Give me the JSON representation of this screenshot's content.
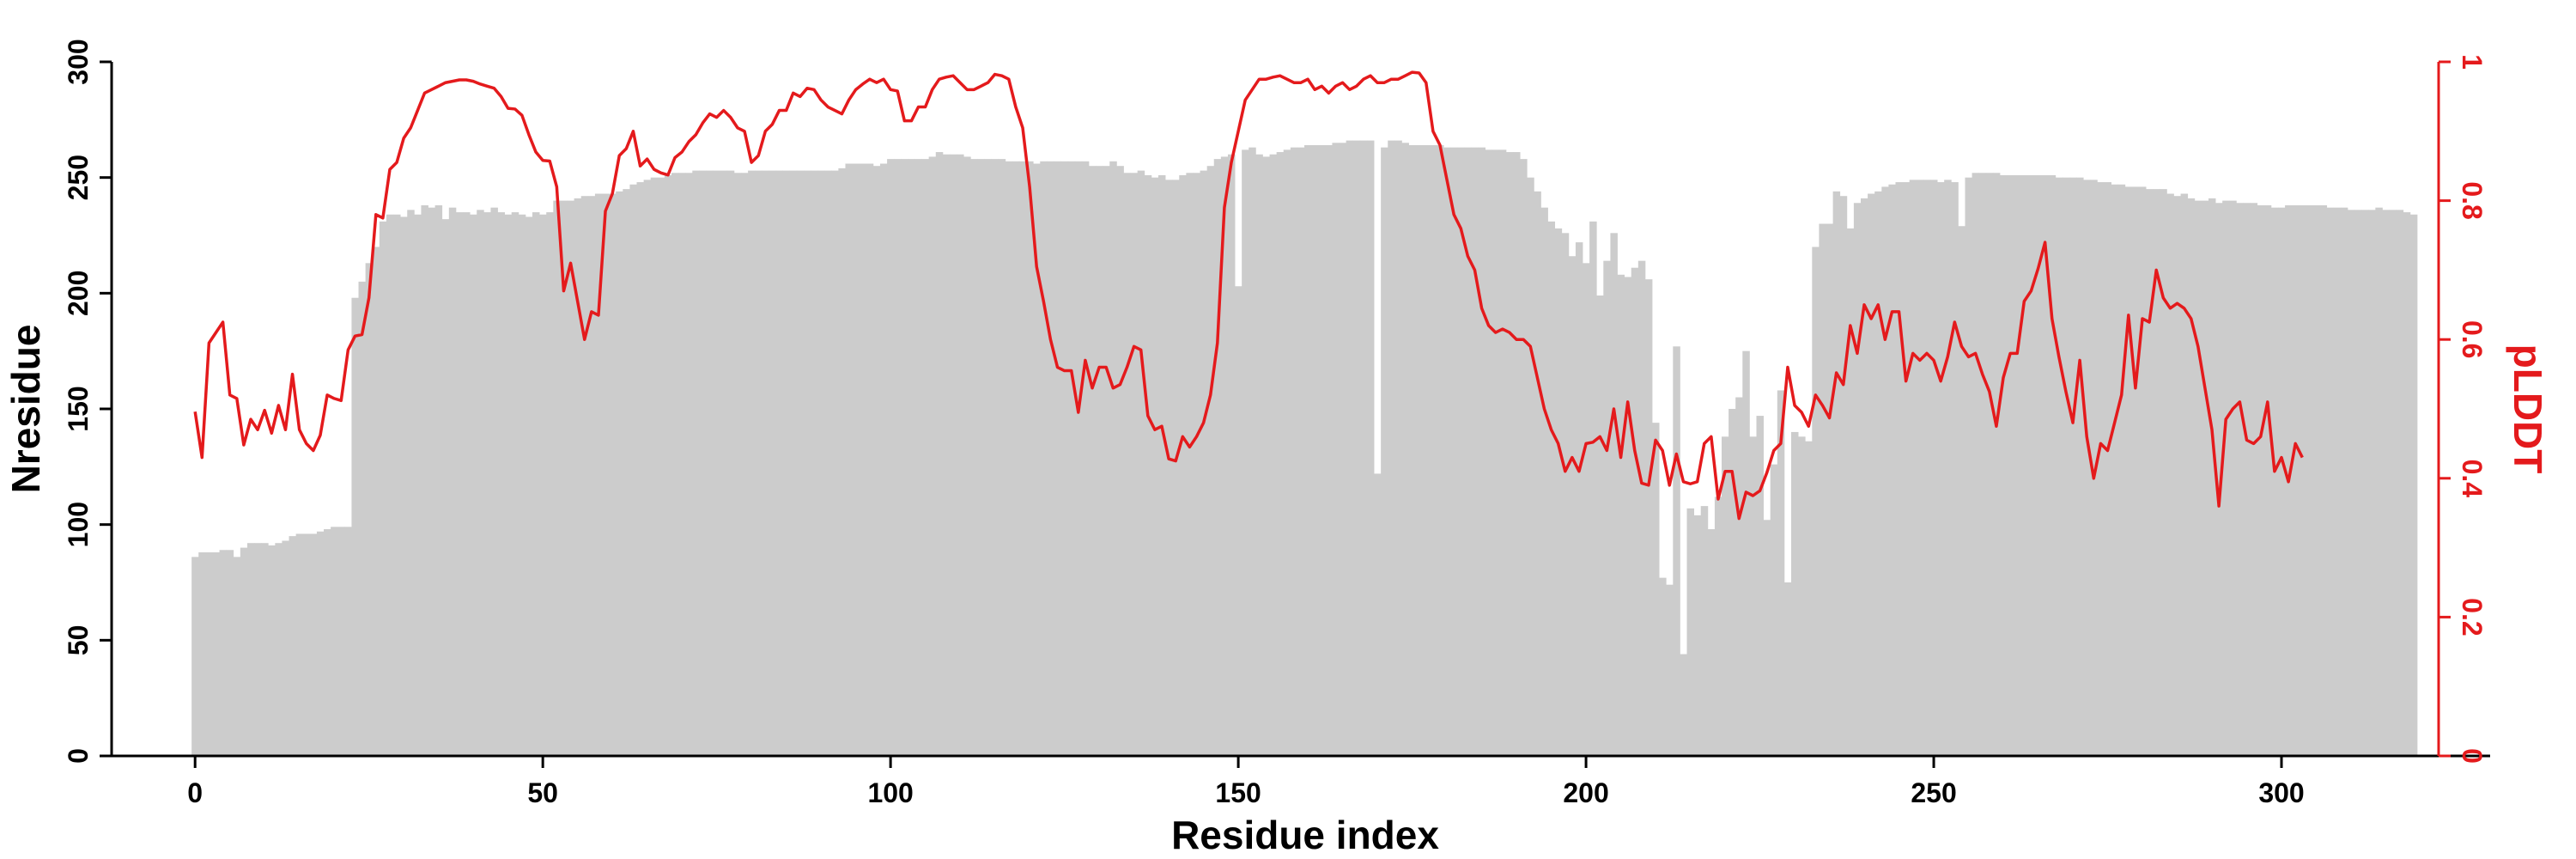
{
  "chart_data": {
    "type": "bar",
    "xlabel": "Residue index",
    "ylabel": "Nresidue",
    "y2label": "pLDDT",
    "xlim": [
      -12,
      330
    ],
    "ylim": [
      0,
      300
    ],
    "y2lim": [
      0,
      1
    ],
    "x_ticks": [
      0,
      50,
      100,
      150,
      200,
      250,
      300
    ],
    "y_ticks": [
      0,
      50,
      100,
      150,
      200,
      250,
      300
    ],
    "y2_ticks": [
      0,
      0.2,
      0.4,
      0.6,
      0.8,
      1
    ],
    "grid": false,
    "series": [
      {
        "axis": "left",
        "type": "bar",
        "color": "#cccccc",
        "x_start": 0,
        "values": [
          86,
          88,
          88,
          88,
          89,
          89,
          86,
          90,
          92,
          92,
          92,
          91,
          92,
          93,
          95,
          96,
          96,
          96,
          97,
          98,
          99,
          99,
          99,
          198,
          205,
          213,
          220,
          231,
          234,
          234,
          233,
          236,
          234,
          238,
          237,
          238,
          232,
          237,
          235,
          235,
          234,
          236,
          235,
          237,
          235,
          234,
          235,
          234,
          233,
          235,
          234,
          235,
          240,
          240,
          240,
          241,
          242,
          242,
          243,
          243,
          243,
          244,
          245,
          247,
          248,
          249,
          250,
          250,
          251,
          252,
          252,
          252,
          253,
          253,
          253,
          253,
          253,
          253,
          252,
          252,
          253,
          253,
          253,
          253,
          253,
          253,
          253,
          253,
          253,
          253,
          253,
          253,
          253,
          254,
          256,
          256,
          256,
          256,
          255,
          256,
          258,
          258,
          258,
          258,
          258,
          258,
          259,
          261,
          260,
          260,
          260,
          259,
          258,
          258,
          258,
          258,
          258,
          257,
          257,
          257,
          257,
          256,
          257,
          257,
          257,
          257,
          257,
          257,
          257,
          255,
          255,
          255,
          257,
          255,
          252,
          252,
          253,
          251,
          250,
          251,
          249,
          249,
          251,
          252,
          252,
          253,
          255,
          258,
          259,
          260,
          203,
          262,
          263,
          260,
          259,
          260,
          261,
          262,
          263,
          263,
          264,
          264,
          264,
          264,
          265,
          265,
          266,
          266,
          266,
          266,
          122,
          263,
          266,
          266,
          265,
          264,
          264,
          264,
          264,
          264,
          263,
          263,
          263,
          263,
          263,
          263,
          262,
          262,
          262,
          261,
          261,
          258,
          250,
          244,
          237,
          231,
          228,
          226,
          216,
          222,
          213,
          231,
          199,
          214,
          226,
          208,
          207,
          211,
          214,
          206,
          144,
          77,
          74,
          177,
          44,
          107,
          104,
          108,
          98,
          112,
          138,
          150,
          155,
          175,
          138,
          147,
          102,
          126,
          158,
          75,
          140,
          138,
          136,
          220,
          230,
          230,
          244,
          242,
          228,
          239,
          241,
          243,
          244,
          246,
          247,
          248,
          248,
          249,
          249,
          249,
          249,
          248,
          249,
          248,
          229,
          250,
          252,
          252,
          252,
          252,
          251,
          251,
          251,
          251,
          251,
          251,
          251,
          251,
          250,
          250,
          250,
          250,
          249,
          249,
          248,
          248,
          247,
          247,
          246,
          246,
          246,
          245,
          245,
          245,
          243,
          242,
          243,
          241,
          240,
          240,
          241,
          239,
          240,
          240,
          239,
          239,
          239,
          238,
          238,
          237,
          237,
          238,
          238,
          238,
          238,
          238,
          238,
          237,
          237,
          237,
          236,
          236,
          236,
          236,
          237,
          236,
          236,
          236,
          235,
          234
        ]
      },
      {
        "axis": "right",
        "type": "line",
        "color": "#e41a1c",
        "x_start": 0,
        "values": [
          0.496,
          0.43,
          0.595,
          0.61,
          0.625,
          0.52,
          0.515,
          0.448,
          0.485,
          0.47,
          0.498,
          0.465,
          0.505,
          0.47,
          0.55,
          0.47,
          0.45,
          0.44,
          0.462,
          0.52,
          0.515,
          0.512,
          0.585,
          0.605,
          0.607,
          0.66,
          0.78,
          0.775,
          0.845,
          0.855,
          0.89,
          0.905,
          0.93,
          0.955,
          0.96,
          0.965,
          0.97,
          0.972,
          0.974,
          0.974,
          0.972,
          0.968,
          0.965,
          0.962,
          0.95,
          0.933,
          0.932,
          0.923,
          0.895,
          0.87,
          0.858,
          0.857,
          0.82,
          0.67,
          0.71,
          0.655,
          0.6,
          0.64,
          0.635,
          0.785,
          0.81,
          0.865,
          0.875,
          0.9,
          0.85,
          0.86,
          0.845,
          0.84,
          0.837,
          0.862,
          0.87,
          0.885,
          0.895,
          0.912,
          0.925,
          0.92,
          0.93,
          0.92,
          0.905,
          0.9,
          0.855,
          0.865,
          0.9,
          0.91,
          0.93,
          0.93,
          0.955,
          0.95,
          0.962,
          0.96,
          0.945,
          0.935,
          0.93,
          0.925,
          0.945,
          0.96,
          0.968,
          0.975,
          0.97,
          0.975,
          0.96,
          0.958,
          0.915,
          0.915,
          0.935,
          0.935,
          0.96,
          0.975,
          0.978,
          0.98,
          0.97,
          0.96,
          0.96,
          0.965,
          0.97,
          0.982,
          0.98,
          0.975,
          0.935,
          0.905,
          0.82,
          0.705,
          0.655,
          0.6,
          0.56,
          0.555,
          0.555,
          0.495,
          0.57,
          0.53,
          0.56,
          0.56,
          0.53,
          0.535,
          0.56,
          0.59,
          0.585,
          0.49,
          0.47,
          0.475,
          0.428,
          0.425,
          0.46,
          0.445,
          0.46,
          0.48,
          0.52,
          0.595,
          0.79,
          0.855,
          0.9,
          0.945,
          0.96,
          0.975,
          0.975,
          0.978,
          0.98,
          0.975,
          0.97,
          0.97,
          0.975,
          0.96,
          0.965,
          0.955,
          0.965,
          0.97,
          0.96,
          0.965,
          0.975,
          0.98,
          0.97,
          0.97,
          0.975,
          0.975,
          0.98,
          0.985,
          0.984,
          0.97,
          0.9,
          0.88,
          0.83,
          0.78,
          0.76,
          0.72,
          0.7,
          0.645,
          0.62,
          0.61,
          0.615,
          0.61,
          0.6,
          0.6,
          0.59,
          0.545,
          0.5,
          0.47,
          0.45,
          0.41,
          0.43,
          0.41,
          0.45,
          0.452,
          0.46,
          0.44,
          0.5,
          0.43,
          0.51,
          0.44,
          0.393,
          0.39,
          0.455,
          0.44,
          0.39,
          0.435,
          0.395,
          0.392,
          0.395,
          0.45,
          0.46,
          0.37,
          0.41,
          0.41,
          0.342,
          0.38,
          0.375,
          0.382,
          0.408,
          0.44,
          0.45,
          0.56,
          0.505,
          0.495,
          0.475,
          0.52,
          0.505,
          0.487,
          0.552,
          0.535,
          0.62,
          0.58,
          0.65,
          0.63,
          0.65,
          0.6,
          0.64,
          0.64,
          0.54,
          0.58,
          0.57,
          0.58,
          0.57,
          0.54,
          0.575,
          0.625,
          0.59,
          0.575,
          0.58,
          0.55,
          0.525,
          0.475,
          0.545,
          0.58,
          0.58,
          0.655,
          0.67,
          0.702,
          0.74,
          0.63,
          0.575,
          0.525,
          0.48,
          0.57,
          0.46,
          0.4,
          0.45,
          0.44,
          0.48,
          0.52,
          0.635,
          0.53,
          0.63,
          0.625,
          0.7,
          0.66,
          0.645,
          0.652,
          0.645,
          0.63,
          0.59,
          0.53,
          0.47,
          0.36,
          0.485,
          0.5,
          0.51,
          0.455,
          0.45,
          0.46,
          0.51,
          0.41,
          0.43,
          0.395,
          0.45,
          0.43
        ]
      }
    ]
  }
}
